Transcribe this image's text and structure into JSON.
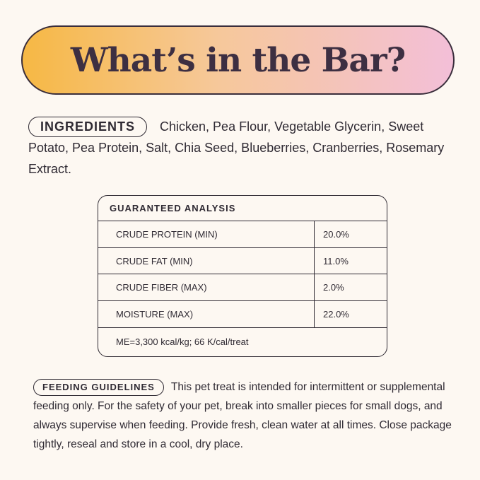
{
  "title": "What’s in the Bar?",
  "ingredients": {
    "label": "INGREDIENTS",
    "text": "Chicken, Pea Flour, Vegetable Glycerin, Sweet Potato, Pea Protein, Salt, Chia Seed, Blueberries, Cranberries, Rosemary Extract."
  },
  "analysis": {
    "heading": "GUARANTEED ANALYSIS",
    "rows": [
      {
        "label": "CRUDE PROTEIN (MIN)",
        "value": "20.0%"
      },
      {
        "label": "CRUDE FAT (MIN)",
        "value": "11.0%"
      },
      {
        "label": "CRUDE FIBER (MAX)",
        "value": "2.0%"
      },
      {
        "label": "MOISTURE (MAX)",
        "value": "22.0%"
      }
    ],
    "footer": "ME=3,300 kcal/kg; 66 K/cal/treat"
  },
  "feeding": {
    "label": "FEEDING GUIDELINES",
    "text": "This pet treat is intended for intermittent or supplemental feeding only. For the safety of your pet, break into smaller pieces for small dogs, and always supervise when feeding. Provide fresh, clean water at all times. Close package tightly, reseal and store in a cool, dry place."
  },
  "colors": {
    "background": "#fdf8f2",
    "gradient_start": "#f6b844",
    "gradient_end": "#f3bfd8",
    "text": "#2f2a33"
  }
}
